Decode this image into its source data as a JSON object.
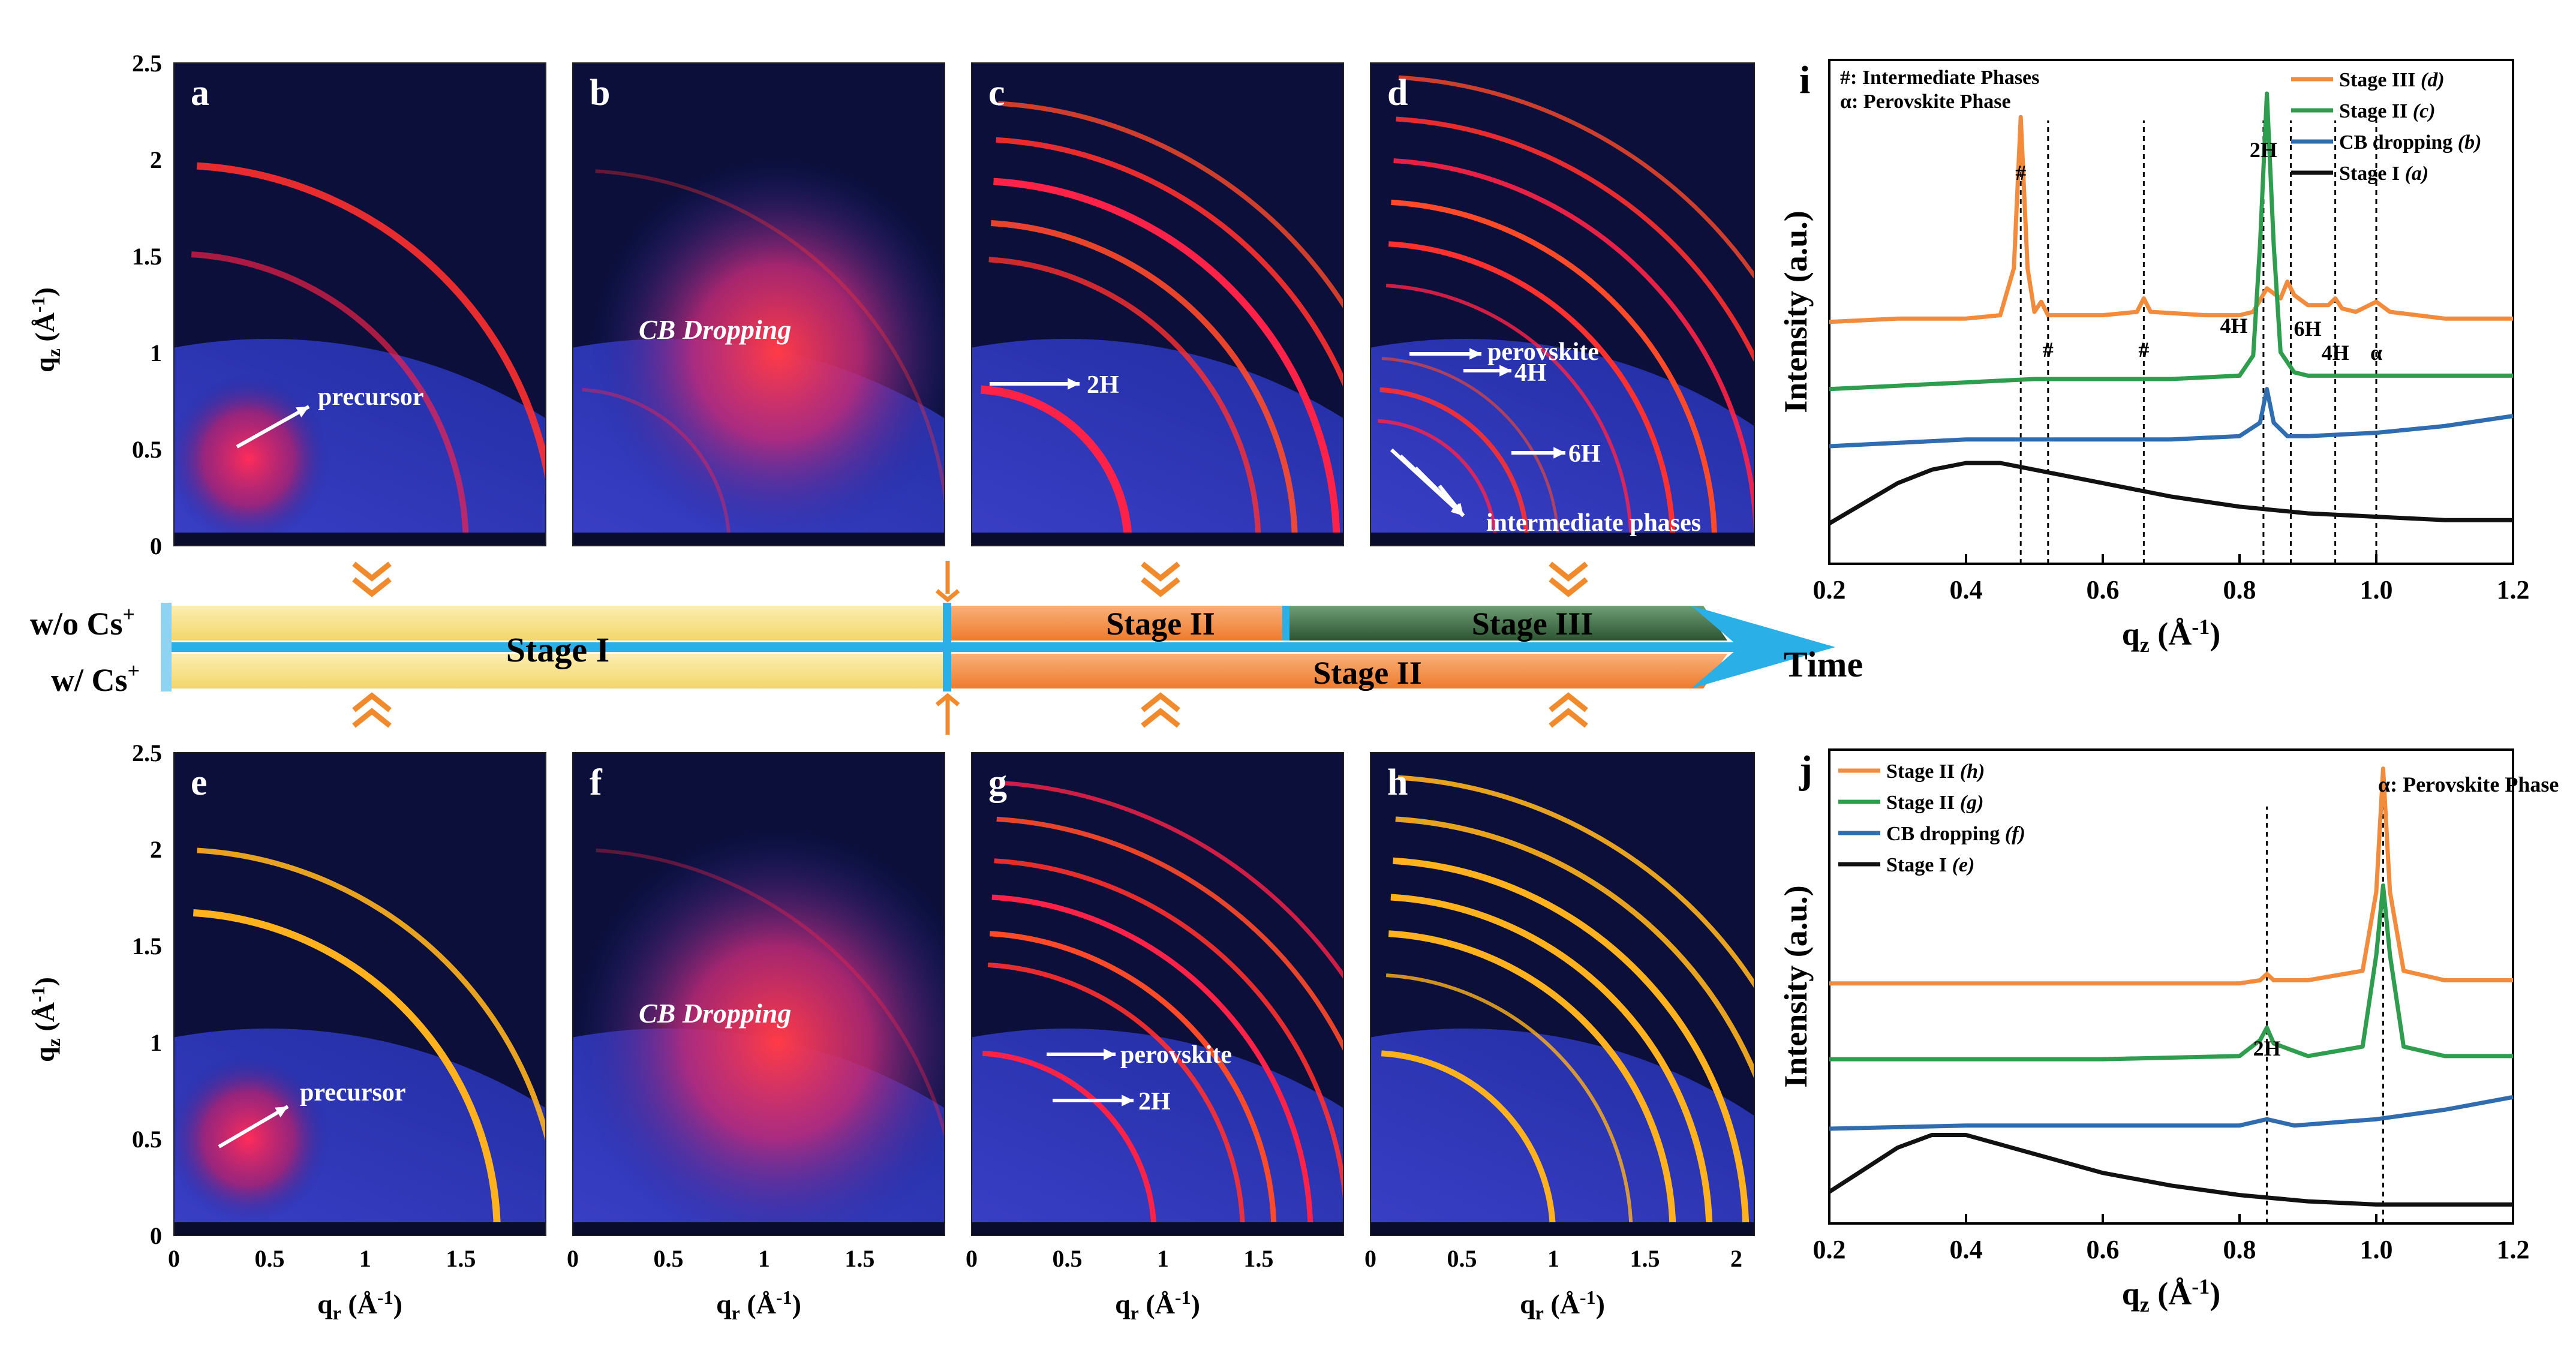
{
  "gisaxs": {
    "axis_label_qz": "q",
    "axis_label_qz_sub": "z",
    "axis_label_qr": "q",
    "axis_label_qr_sub": "r",
    "axis_unit": " (Å",
    "axis_unit_exp": "-1",
    "axis_unit_close": ")",
    "y_ticks": [
      "0",
      "0.5",
      "1",
      "1.5",
      "2",
      "2.5"
    ],
    "x_ticks_short": [
      "0",
      "0.5",
      "1",
      "1.5"
    ],
    "x_ticks_long": [
      "0",
      "0.5",
      "1",
      "1.5",
      "2"
    ],
    "panels": [
      {
        "letter": "a",
        "labels": [
          {
            "text": "precursor"
          }
        ]
      },
      {
        "letter": "b",
        "labels": [
          {
            "text": "CB Dropping"
          }
        ]
      },
      {
        "letter": "c",
        "labels": [
          {
            "text": "2H"
          }
        ]
      },
      {
        "letter": "d",
        "labels": [
          {
            "text": "perovskite"
          },
          {
            "text": "4H"
          },
          {
            "text": "6H"
          },
          {
            "text": "intermediate phases"
          }
        ]
      },
      {
        "letter": "e",
        "labels": [
          {
            "text": "precursor"
          }
        ]
      },
      {
        "letter": "f",
        "labels": [
          {
            "text": "CB Dropping"
          }
        ]
      },
      {
        "letter": "g",
        "labels": [
          {
            "text": "perovskite"
          },
          {
            "text": "2H"
          }
        ]
      },
      {
        "letter": "h",
        "labels": []
      }
    ]
  },
  "timeline": {
    "wo_cs": "w/o Cs",
    "w_cs": "w/ Cs",
    "cs_sup": "+",
    "stage1": "Stage I",
    "stage2_top": "Stage II",
    "stage3_top": "Stage III",
    "stage2_bottom": "Stage II",
    "time": "Time",
    "colors": {
      "yellow": "#f5dd7c",
      "orange": "#f28b3c",
      "green": "#3d6b42",
      "arrow": "#2ab0e6",
      "chevron": "#f08a2c"
    }
  },
  "chart_data": [
    {
      "type": "line",
      "panel": "i",
      "xlabel": "q",
      "xlabel_sub": "z",
      "xlabel_unit": " (Å",
      "xlabel_exp": "-1",
      "xlabel_close": ")",
      "ylabel": "Intensity (a.u.)",
      "xlim": [
        0.2,
        1.2
      ],
      "x_ticks": [
        "0.2",
        "0.4",
        "0.6",
        "0.8",
        "1.0",
        "1.2"
      ],
      "notes": [
        "#: Intermediate Phases",
        "α: Perovskite Phase"
      ],
      "legend_position": "top-right",
      "series": [
        {
          "name": "Stage III",
          "name_tag": "(d)",
          "color": "#f28b3c",
          "x": [
            0.2,
            0.3,
            0.4,
            0.45,
            0.47,
            0.48,
            0.49,
            0.5,
            0.51,
            0.52,
            0.53,
            0.6,
            0.65,
            0.66,
            0.67,
            0.75,
            0.8,
            0.82,
            0.84,
            0.86,
            0.87,
            0.88,
            0.9,
            0.93,
            0.94,
            0.95,
            0.97,
            1.0,
            1.02,
            1.1,
            1.2
          ],
          "values": [
            0.72,
            0.73,
            0.73,
            0.74,
            0.88,
            1.33,
            0.88,
            0.75,
            0.78,
            0.74,
            0.74,
            0.74,
            0.75,
            0.79,
            0.75,
            0.74,
            0.74,
            0.75,
            0.82,
            0.79,
            0.84,
            0.8,
            0.77,
            0.77,
            0.79,
            0.76,
            0.75,
            0.78,
            0.75,
            0.73,
            0.73
          ]
        },
        {
          "name": "Stage II",
          "name_tag": "(c)",
          "color": "#2e9e4e",
          "x": [
            0.2,
            0.3,
            0.4,
            0.5,
            0.6,
            0.7,
            0.8,
            0.82,
            0.83,
            0.84,
            0.85,
            0.86,
            0.88,
            0.9,
            1.0,
            1.1,
            1.2
          ],
          "values": [
            0.52,
            0.53,
            0.54,
            0.55,
            0.55,
            0.55,
            0.56,
            0.62,
            0.95,
            1.4,
            0.95,
            0.63,
            0.57,
            0.56,
            0.56,
            0.56,
            0.56
          ]
        },
        {
          "name": "CB dropping",
          "name_tag": "(b)",
          "color": "#2f6db0",
          "x": [
            0.2,
            0.3,
            0.4,
            0.5,
            0.6,
            0.7,
            0.8,
            0.83,
            0.84,
            0.85,
            0.87,
            0.9,
            1.0,
            1.1,
            1.2
          ],
          "values": [
            0.35,
            0.36,
            0.37,
            0.37,
            0.37,
            0.37,
            0.38,
            0.42,
            0.52,
            0.42,
            0.38,
            0.38,
            0.39,
            0.41,
            0.44
          ]
        },
        {
          "name": "Stage I",
          "name_tag": "(a)",
          "color": "#111111",
          "x": [
            0.2,
            0.25,
            0.3,
            0.35,
            0.4,
            0.45,
            0.5,
            0.6,
            0.7,
            0.8,
            0.9,
            1.0,
            1.1,
            1.2
          ],
          "values": [
            0.12,
            0.18,
            0.24,
            0.28,
            0.3,
            0.3,
            0.28,
            0.24,
            0.2,
            0.17,
            0.15,
            0.14,
            0.13,
            0.13
          ]
        }
      ],
      "peak_labels": [
        {
          "text": "#",
          "x": 0.48
        },
        {
          "text": "#",
          "x": 0.52
        },
        {
          "text": "#",
          "x": 0.66
        },
        {
          "text": "2H",
          "x": 0.835
        },
        {
          "text": "4H",
          "x": 0.825
        },
        {
          "text": "6H",
          "x": 0.875
        },
        {
          "text": "4H",
          "x": 0.94
        },
        {
          "text": "α",
          "x": 1.0
        }
      ],
      "dashed_lines": [
        0.48,
        0.52,
        0.66,
        0.835,
        0.875,
        0.94,
        1.0
      ]
    },
    {
      "type": "line",
      "panel": "j",
      "xlabel": "q",
      "xlabel_sub": "z",
      "xlabel_unit": " (Å",
      "xlabel_exp": "-1",
      "xlabel_close": ")",
      "ylabel": "Intensity (a.u.)",
      "xlim": [
        0.2,
        1.2
      ],
      "x_ticks": [
        "0.2",
        "0.4",
        "0.6",
        "0.8",
        "1.0",
        "1.2"
      ],
      "notes": [
        "α: Perovskite Phase"
      ],
      "legend_position": "top-left",
      "series": [
        {
          "name": "Stage II",
          "name_tag": "(h)",
          "color": "#f28b3c",
          "x": [
            0.2,
            0.4,
            0.6,
            0.8,
            0.83,
            0.84,
            0.85,
            0.9,
            0.98,
            1.0,
            1.01,
            1.02,
            1.04,
            1.1,
            1.2
          ],
          "values": [
            0.76,
            0.76,
            0.76,
            0.76,
            0.77,
            0.79,
            0.77,
            0.77,
            0.8,
            1.05,
            1.44,
            1.05,
            0.8,
            0.77,
            0.77
          ]
        },
        {
          "name": "Stage II",
          "name_tag": "(g)",
          "color": "#2e9e4e",
          "x": [
            0.2,
            0.4,
            0.6,
            0.8,
            0.83,
            0.84,
            0.85,
            0.9,
            0.98,
            1.0,
            1.01,
            1.02,
            1.04,
            1.1,
            1.2
          ],
          "values": [
            0.52,
            0.52,
            0.52,
            0.53,
            0.58,
            0.62,
            0.57,
            0.53,
            0.56,
            0.85,
            1.07,
            0.85,
            0.56,
            0.53,
            0.53
          ]
        },
        {
          "name": "CB dropping",
          "name_tag": "(f)",
          "color": "#2f6db0",
          "x": [
            0.2,
            0.4,
            0.6,
            0.8,
            0.84,
            0.88,
            1.0,
            1.1,
            1.2
          ],
          "values": [
            0.3,
            0.31,
            0.31,
            0.31,
            0.33,
            0.31,
            0.33,
            0.36,
            0.4
          ]
        },
        {
          "name": "Stage I",
          "name_tag": "(e)",
          "color": "#111111",
          "x": [
            0.2,
            0.25,
            0.3,
            0.35,
            0.4,
            0.45,
            0.5,
            0.6,
            0.7,
            0.8,
            0.9,
            1.0,
            1.1,
            1.2
          ],
          "values": [
            0.1,
            0.17,
            0.24,
            0.28,
            0.28,
            0.25,
            0.22,
            0.16,
            0.12,
            0.09,
            0.07,
            0.06,
            0.06,
            0.06
          ]
        }
      ],
      "peak_labels": [
        {
          "text": "2H",
          "x": 0.84
        }
      ],
      "dashed_lines": [
        0.84,
        1.01
      ]
    }
  ]
}
